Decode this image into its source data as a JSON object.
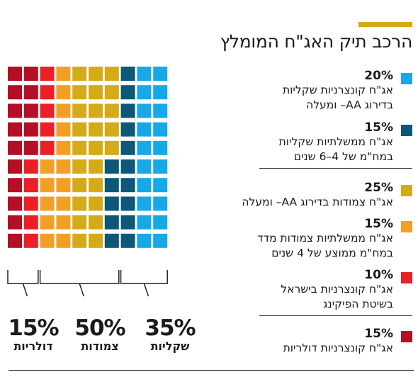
{
  "title": "הרכב תיק האג\"ח המומלץ",
  "chart_data": {
    "type": "waffle",
    "grid": {
      "rows": 10,
      "cols": 10
    },
    "segments": [
      {
        "pct": "20%",
        "value": 20,
        "color": "#17a8e8",
        "line1": "אג\"ח קונצרניות שקליות",
        "line2": "בדירוג AA– ומעלה"
      },
      {
        "pct": "15%",
        "value": 15,
        "color": "#0d5878",
        "line1": "אג\"ח ממשלתיות שקליות",
        "line2": "במח\"מ של 4–6 שנים"
      },
      {
        "pct": "25%",
        "value": 25,
        "color": "#d3ab17",
        "line1": "אג\"ח צמודות בדירוג AA– ומעלה",
        "line2": ""
      },
      {
        "pct": "15%",
        "value": 15,
        "color": "#f29f25",
        "line1": "אג\"ח ממשלתיות צמודות מדד",
        "line2": "במח\"מ ממוצע של 4 שנים"
      },
      {
        "pct": "10%",
        "value": 10,
        "color": "#ea2026",
        "line1": "אג\"ח קונצרניות בישראל",
        "line2": "בשיטת הפיקינג"
      },
      {
        "pct": "15%",
        "value": 15,
        "color": "#b50f26",
        "line1": "אג\"ח קונצרניות דולריות",
        "line2": ""
      }
    ],
    "summary": [
      {
        "pct": "15%",
        "value": 15,
        "label": "דולריות"
      },
      {
        "pct": "50%",
        "value": 50,
        "label": "צמודות"
      },
      {
        "pct": "35%",
        "value": 35,
        "label": "שקליות"
      }
    ]
  }
}
